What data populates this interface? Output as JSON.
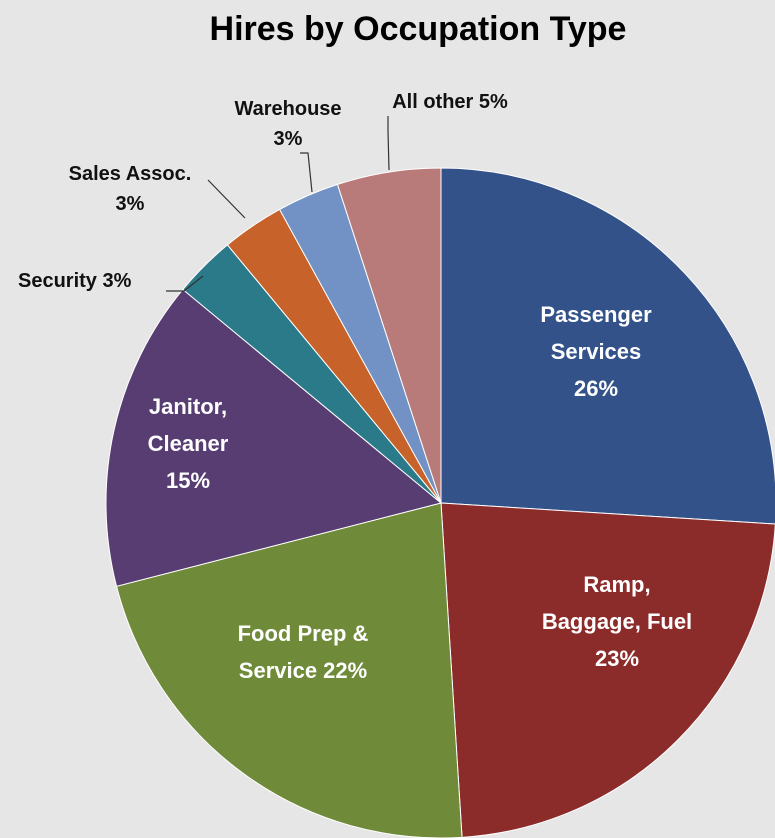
{
  "chart_data": {
    "type": "pie",
    "title": "Hires by Occupation Type",
    "slices": [
      {
        "name": "Passenger Services",
        "value": 26,
        "color": "#335289",
        "label_lines": [
          "Passenger",
          "Services",
          "26%"
        ]
      },
      {
        "name": "Ramp, Baggage, Fuel",
        "value": 23,
        "color": "#8c2c2a",
        "label_lines": [
          "Ramp,",
          "Baggage, Fuel",
          "23%"
        ]
      },
      {
        "name": "Food Prep & Service",
        "value": 22,
        "color": "#6f8a39",
        "label_lines": [
          "Food Prep &",
          "Service 22%"
        ]
      },
      {
        "name": "Janitor, Cleaner",
        "value": 15,
        "color": "#573d72",
        "label_lines": [
          "Janitor,",
          "Cleaner",
          "15%"
        ]
      },
      {
        "name": "Security",
        "value": 3,
        "color": "#2b7a8a",
        "label_lines": [
          "Security 3%"
        ]
      },
      {
        "name": "Sales Assoc.",
        "value": 3,
        "color": "#c7622a",
        "label_lines": [
          "Sales Assoc.",
          "3%"
        ]
      },
      {
        "name": "Warehouse",
        "value": 3,
        "color": "#7291c4",
        "label_lines": [
          "Warehouse",
          "3%"
        ]
      },
      {
        "name": "All other",
        "value": 5,
        "color": "#b97b79",
        "label_lines": [
          "All other 5%"
        ]
      }
    ]
  }
}
